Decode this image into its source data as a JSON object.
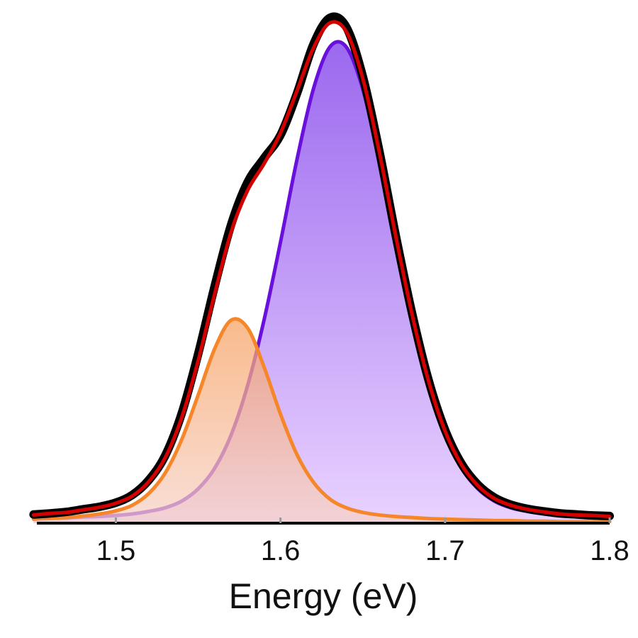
{
  "chart_data": {
    "type": "line",
    "x_label": "Energy (eV)",
    "xlim": [
      1.452,
      1.8
    ],
    "xticks": [
      1.5,
      1.6,
      1.7,
      1.8
    ],
    "ylim": [
      0,
      1
    ],
    "x": [
      1.45,
      1.46,
      1.47,
      1.48,
      1.49,
      1.5,
      1.51,
      1.52,
      1.53,
      1.54,
      1.55,
      1.56,
      1.57,
      1.58,
      1.59,
      1.6,
      1.61,
      1.62,
      1.63,
      1.64,
      1.65,
      1.66,
      1.67,
      1.68,
      1.69,
      1.7,
      1.71,
      1.72,
      1.73,
      1.74,
      1.75,
      1.76,
      1.77,
      1.78,
      1.79,
      1.8
    ],
    "series": [
      {
        "color": "#6a10dc",
        "fill": [
          "#9660ee",
          "#e8d0ff"
        ],
        "width": 5,
        "values": [
          0.008,
          0.009,
          0.01,
          0.012,
          0.013,
          0.015,
          0.018,
          0.023,
          0.03,
          0.043,
          0.067,
          0.107,
          0.172,
          0.268,
          0.396,
          0.548,
          0.709,
          0.847,
          0.929,
          0.929,
          0.847,
          0.709,
          0.548,
          0.396,
          0.268,
          0.172,
          0.107,
          0.067,
          0.043,
          0.03,
          0.023,
          0.018,
          0.015,
          0.013,
          0.012,
          0.01
        ]
      },
      {
        "color": "#f5862a",
        "fill": [
          "#f7a060",
          "#f6d2c8"
        ],
        "width": 5,
        "values": [
          0.008,
          0.01,
          0.011,
          0.014,
          0.018,
          0.024,
          0.035,
          0.058,
          0.098,
          0.163,
          0.25,
          0.34,
          0.396,
          0.381,
          0.305,
          0.213,
          0.134,
          0.08,
          0.047,
          0.03,
          0.021,
          0.016,
          0.013,
          0.011,
          0.009,
          0.008,
          0.007,
          0.006,
          0.005,
          0.005,
          0.004,
          0.004,
          0.003,
          0.003,
          0.003,
          0.003
        ]
      },
      {
        "color": "#000000",
        "width": 12,
        "values": [
          0.017,
          0.019,
          0.022,
          0.027,
          0.032,
          0.04,
          0.055,
          0.084,
          0.132,
          0.214,
          0.33,
          0.462,
          0.582,
          0.665,
          0.712,
          0.757,
          0.838,
          0.934,
          0.986,
          0.968,
          0.872,
          0.727,
          0.562,
          0.409,
          0.279,
          0.182,
          0.116,
          0.075,
          0.05,
          0.036,
          0.028,
          0.023,
          0.019,
          0.017,
          0.015,
          0.014
        ]
      },
      {
        "color": "#d40000",
        "width": 5,
        "values": [
          0.016,
          0.019,
          0.021,
          0.026,
          0.031,
          0.039,
          0.053,
          0.081,
          0.128,
          0.206,
          0.317,
          0.447,
          0.568,
          0.649,
          0.701,
          0.761,
          0.843,
          0.927,
          0.976,
          0.959,
          0.868,
          0.725,
          0.561,
          0.407,
          0.277,
          0.18,
          0.114,
          0.073,
          0.048,
          0.035,
          0.027,
          0.022,
          0.018,
          0.016,
          0.015,
          0.013
        ]
      }
    ]
  }
}
